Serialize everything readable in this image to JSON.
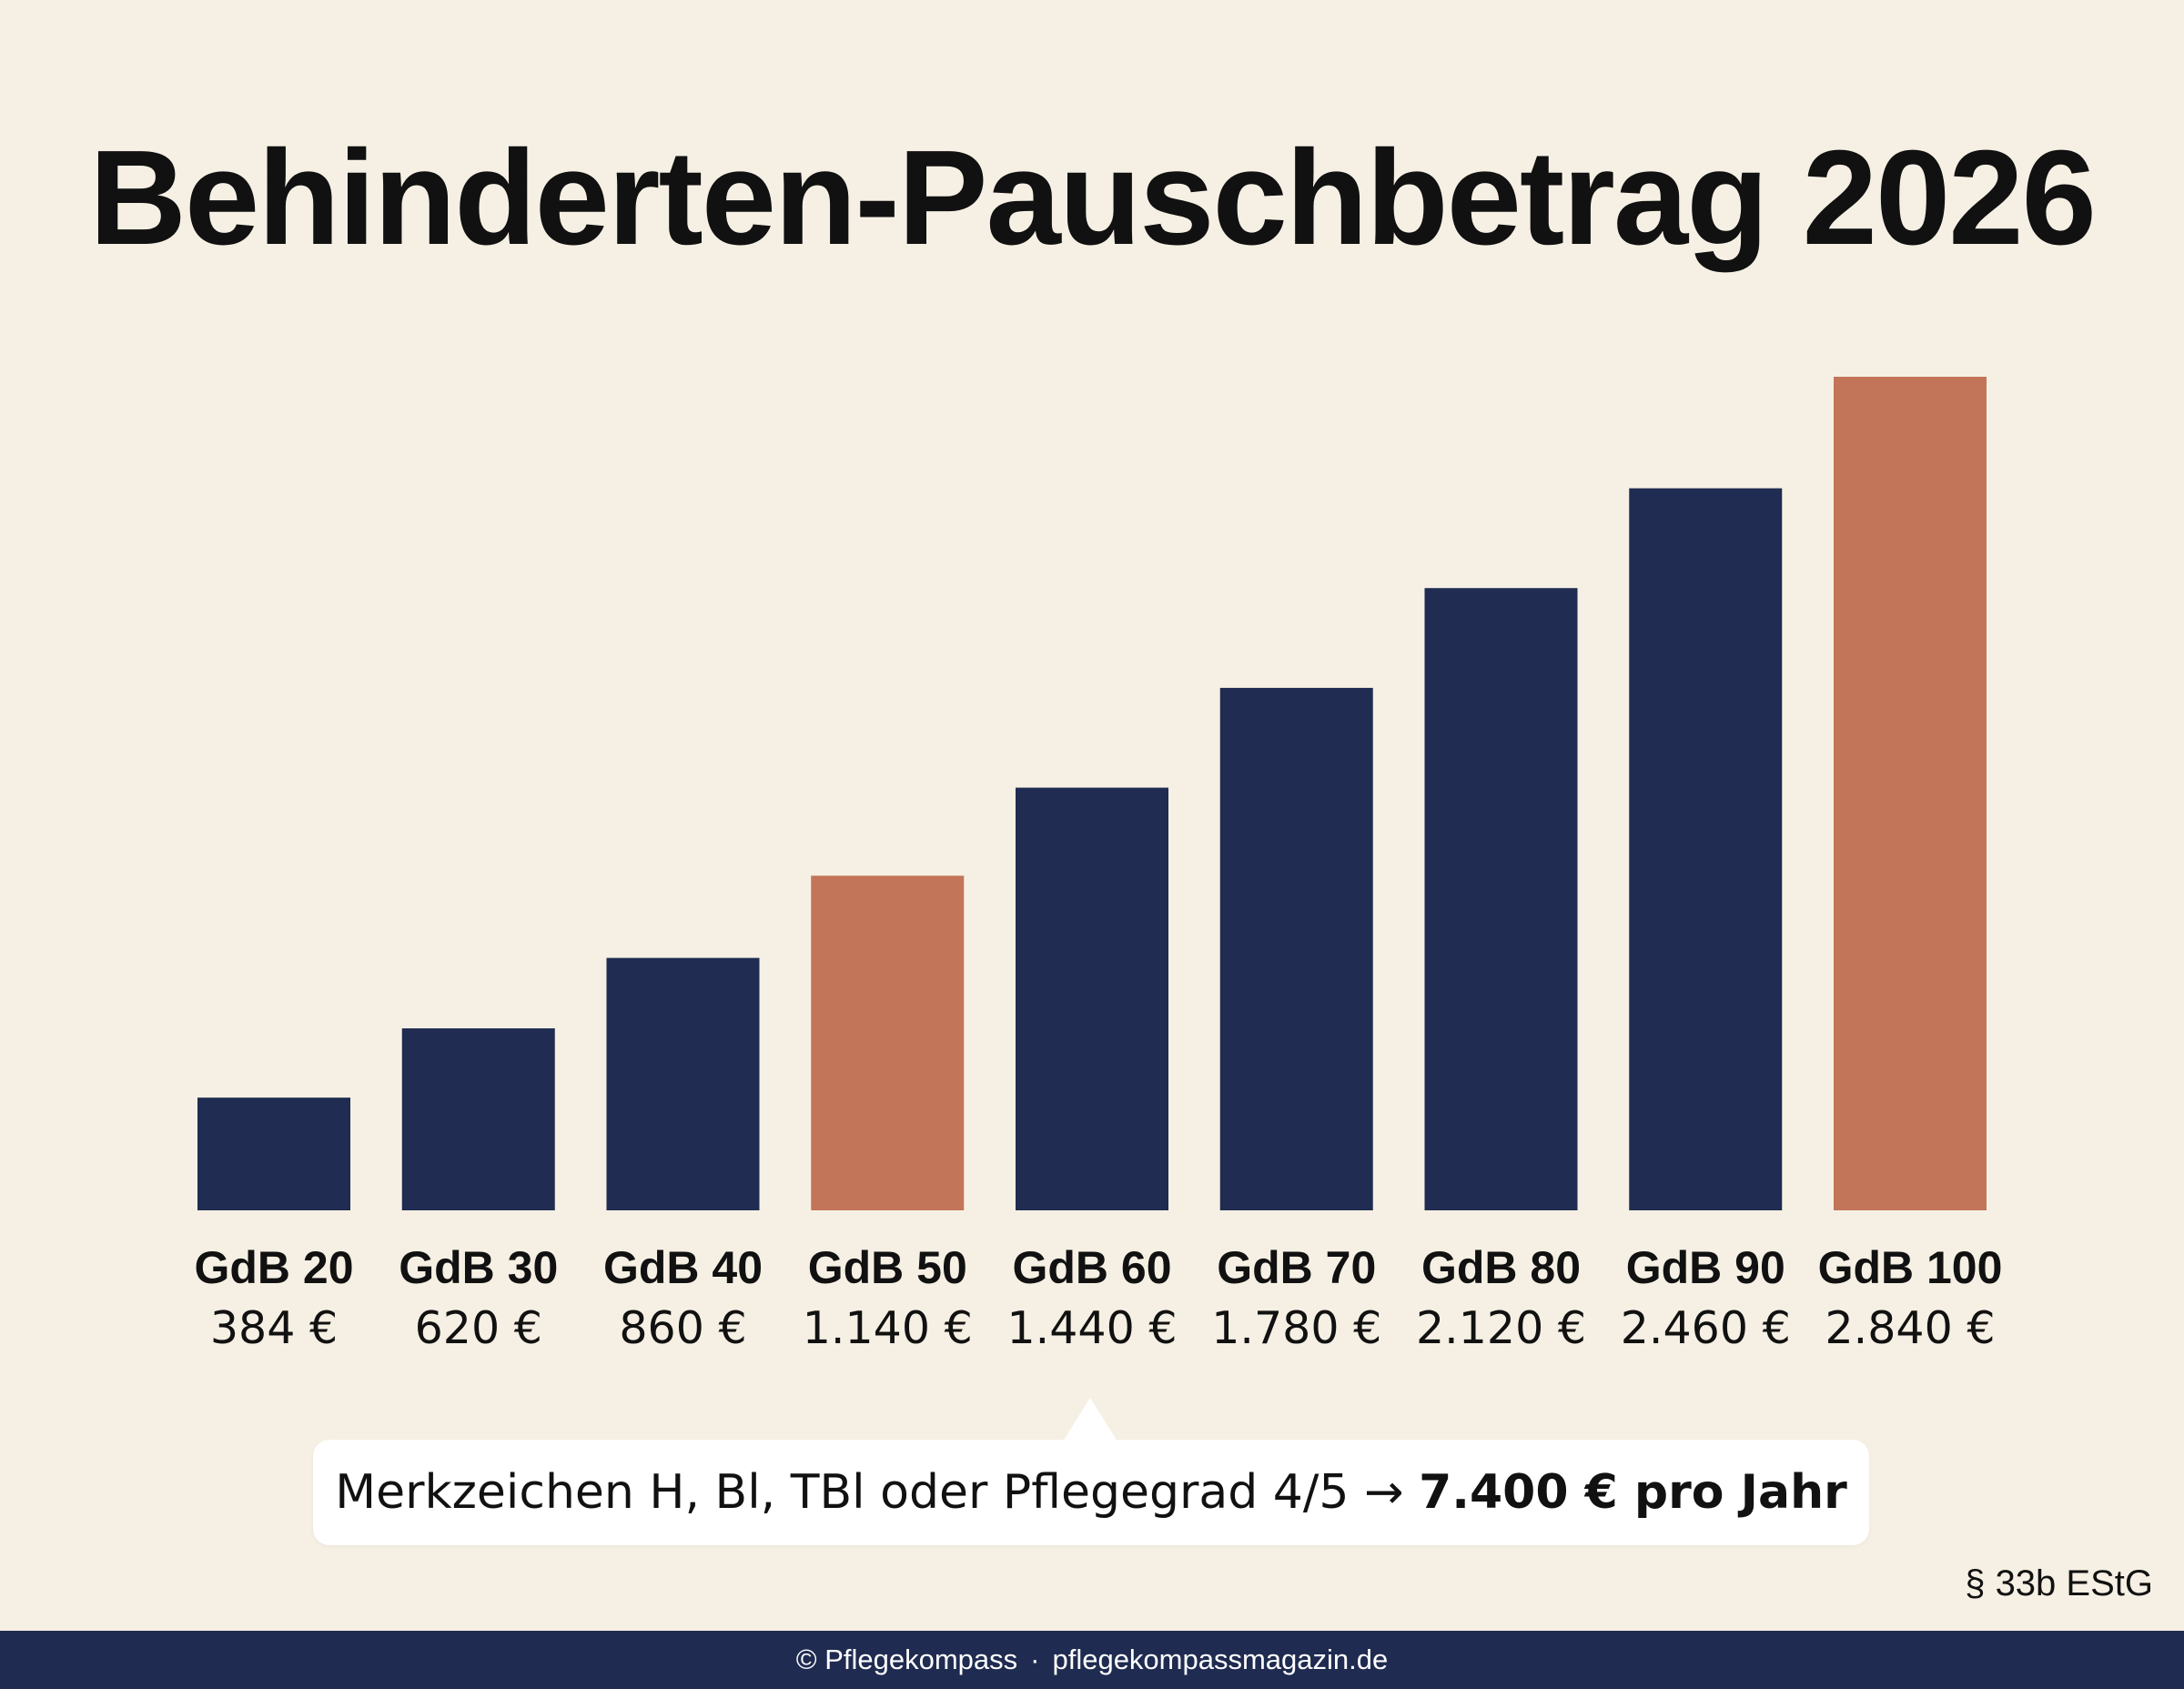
{
  "title": "Behinderten-Pauschbetrag 2026",
  "chart_data": {
    "type": "bar",
    "title": "Behinderten-Pauschbetrag 2026",
    "categories": [
      "GdB 20",
      "GdB 30",
      "GdB 40",
      "GdB 50",
      "GdB 60",
      "GdB 70",
      "GdB 80",
      "GdB 90",
      "GdB 100"
    ],
    "values": [
      384,
      620,
      860,
      1140,
      1440,
      1780,
      2120,
      2460,
      2840
    ],
    "value_labels": [
      "384 €",
      "620 €",
      "860 €",
      "1.140 €",
      "1.440 €",
      "1.780 €",
      "2.120 €",
      "2.460 €",
      "2.840 €"
    ],
    "highlighted": [
      "GdB 50",
      "GdB 100"
    ],
    "ylim": [
      0,
      2840
    ],
    "grid": false,
    "xlabel": "",
    "ylabel": "",
    "colors": {
      "default": "#202c51",
      "highlight": "#c27558"
    }
  },
  "callout": {
    "text": "Merkzeichen H, Bl, TBl oder Pflegegrad 4/5 → ",
    "strong": "7.400 € pro Jahr"
  },
  "legal_ref": "§ 33b EStG",
  "footer": {
    "copyright": "© Pflegekompass",
    "separator": "·",
    "url": "pflegekompassmagazin.de"
  }
}
